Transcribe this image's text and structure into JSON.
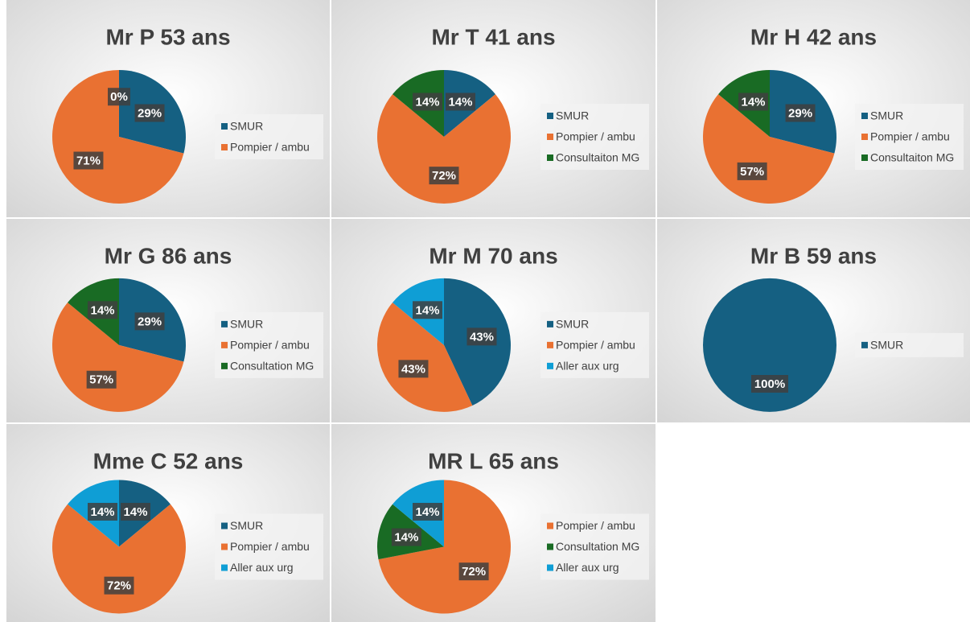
{
  "chart_data": [
    {
      "type": "pie",
      "title": "Mr P 53 ans",
      "categories": [
        "SMUR",
        "Pompier / ambu",
        null
      ],
      "values": [
        29,
        71,
        0
      ],
      "value_labels": [
        "29%",
        "71%",
        "0%"
      ],
      "colors": [
        "#156082",
        "#e97132",
        "#196b24"
      ]
    },
    {
      "type": "pie",
      "title": "Mr T 41 ans",
      "categories": [
        "SMUR",
        "Pompier / ambu",
        "Consultaiton MG"
      ],
      "values": [
        14,
        72,
        14
      ],
      "value_labels": [
        "14%",
        "72%",
        "14%"
      ],
      "colors": [
        "#156082",
        "#e97132",
        "#196b24"
      ]
    },
    {
      "type": "pie",
      "title": "Mr H 42 ans",
      "categories": [
        "SMUR",
        "Pompier / ambu",
        "Consultaiton MG"
      ],
      "values": [
        29,
        57,
        14
      ],
      "value_labels": [
        "29%",
        "57%",
        "14%"
      ],
      "colors": [
        "#156082",
        "#e97132",
        "#196b24"
      ]
    },
    {
      "type": "pie",
      "title": "Mr G 86 ans",
      "categories": [
        "SMUR",
        "Pompier / ambu",
        "Consultation MG"
      ],
      "values": [
        29,
        57,
        14
      ],
      "value_labels": [
        "29%",
        "57%",
        "14%"
      ],
      "colors": [
        "#156082",
        "#e97132",
        "#196b24"
      ]
    },
    {
      "type": "pie",
      "title": "Mr M 70 ans",
      "categories": [
        "SMUR",
        "Pompier / ambu",
        "Aller aux urg"
      ],
      "values": [
        43,
        43,
        14
      ],
      "value_labels": [
        "43%",
        "43%",
        "14%"
      ],
      "colors": [
        "#156082",
        "#e97132",
        "#0f9ed5"
      ]
    },
    {
      "type": "pie",
      "title": "Mr B 59 ans",
      "categories": [
        "SMUR"
      ],
      "values": [
        100
      ],
      "value_labels": [
        "100%"
      ],
      "colors": [
        "#156082"
      ]
    },
    {
      "type": "pie",
      "title": "Mme C 52 ans",
      "categories": [
        "SMUR",
        "Pompier / ambu",
        "Aller aux urg"
      ],
      "values": [
        14,
        72,
        14
      ],
      "value_labels": [
        "14%",
        "72%",
        "14%"
      ],
      "colors": [
        "#156082",
        "#e97132",
        "#0f9ed5"
      ]
    },
    {
      "type": "pie",
      "title": "MR L 65 ans",
      "categories": [
        "Pompier / ambu",
        "Consultation MG",
        "Aller aux urg"
      ],
      "values": [
        72,
        14,
        14
      ],
      "value_labels": [
        "72%",
        "14%",
        "14%"
      ],
      "colors": [
        "#e97132",
        "#196b24",
        "#0f9ed5"
      ]
    }
  ]
}
